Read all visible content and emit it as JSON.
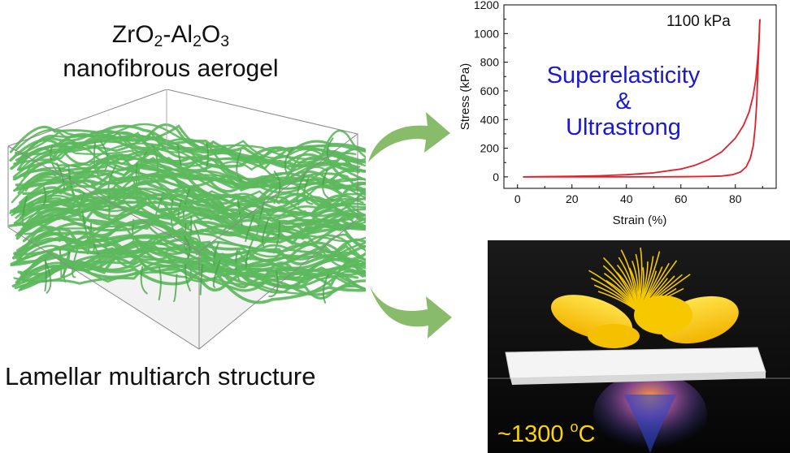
{
  "title": {
    "formula_parts": {
      "a": "ZrO",
      "a_sub": "2",
      "b": "-Al",
      "b_sub": "2",
      "c": "O",
      "c_sub": "3"
    },
    "line2": "nanofibrous aerogel"
  },
  "caption": "Lamellar multiarch structure",
  "chart_data": {
    "type": "line",
    "xlabel": "Strain (%)",
    "ylabel": "Stress (kPa)",
    "xlim": [
      -5,
      95
    ],
    "ylim": [
      -80,
      1200
    ],
    "xticks": [
      0,
      20,
      40,
      60,
      80
    ],
    "yticks": [
      0,
      200,
      400,
      600,
      800,
      1000,
      1200
    ],
    "annotation": "1100 kPa",
    "overlay_text": {
      "line1": "Superelasticity",
      "line2": "&",
      "line3": "Ultrastrong"
    },
    "series": [
      {
        "color": "#e0202a",
        "x": [
          2,
          10,
          20,
          30,
          40,
          50,
          60,
          65,
          70,
          75,
          80,
          83,
          85,
          86.5,
          87.5,
          88.2,
          88.7,
          89
        ],
        "y": [
          0,
          2,
          4,
          8,
          15,
          28,
          55,
          80,
          118,
          175,
          270,
          360,
          450,
          560,
          680,
          820,
          960,
          1100
        ]
      },
      {
        "color": "#e0202a",
        "x": [
          89,
          88.6,
          88.2,
          87.8,
          87.3,
          86.6,
          85.5,
          84,
          82,
          79,
          75,
          70,
          60,
          50,
          40,
          30,
          20,
          10,
          2
        ],
        "y": [
          1100,
          900,
          700,
          500,
          350,
          220,
          130,
          70,
          35,
          15,
          6,
          3,
          1,
          0,
          0,
          0,
          0,
          0,
          0
        ]
      }
    ]
  },
  "photo": {
    "temperature_prefix": "~1300 ",
    "temperature_sup": "o",
    "temperature_unit": "C"
  },
  "colors": {
    "fiber": "#5cb85c",
    "arrow": "#7bb45a",
    "curve": "#e0202a",
    "chart_text": "#1a1acc",
    "temp_text": "#ffd400"
  }
}
